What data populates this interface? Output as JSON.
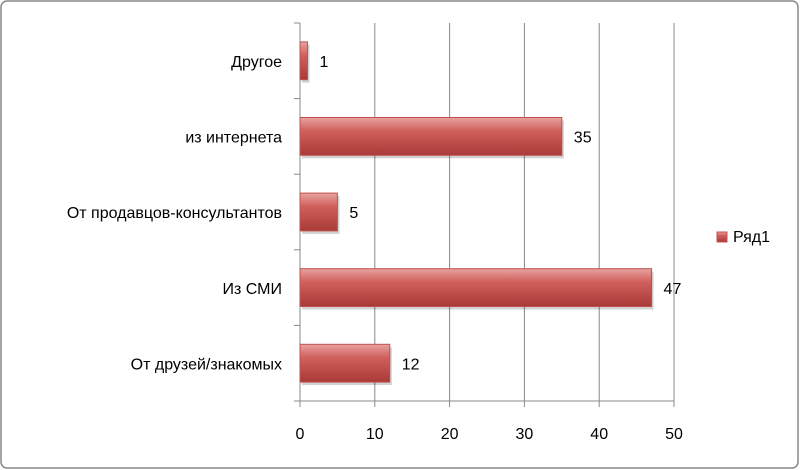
{
  "chart_data": {
    "type": "bar",
    "orientation": "horizontal",
    "categories": [
      "Другое",
      "из интернета",
      "От продавцов-консультантов",
      "Из СМИ",
      "От друзей/знакомых"
    ],
    "series": [
      {
        "name": "Ряд1",
        "color": "#c0504d",
        "values": [
          1,
          35,
          5,
          47,
          12
        ]
      }
    ],
    "xlim": [
      0,
      50
    ],
    "xticks": [
      0,
      10,
      20,
      30,
      40,
      50
    ],
    "grid": true,
    "legend": "right",
    "data_labels": true
  }
}
